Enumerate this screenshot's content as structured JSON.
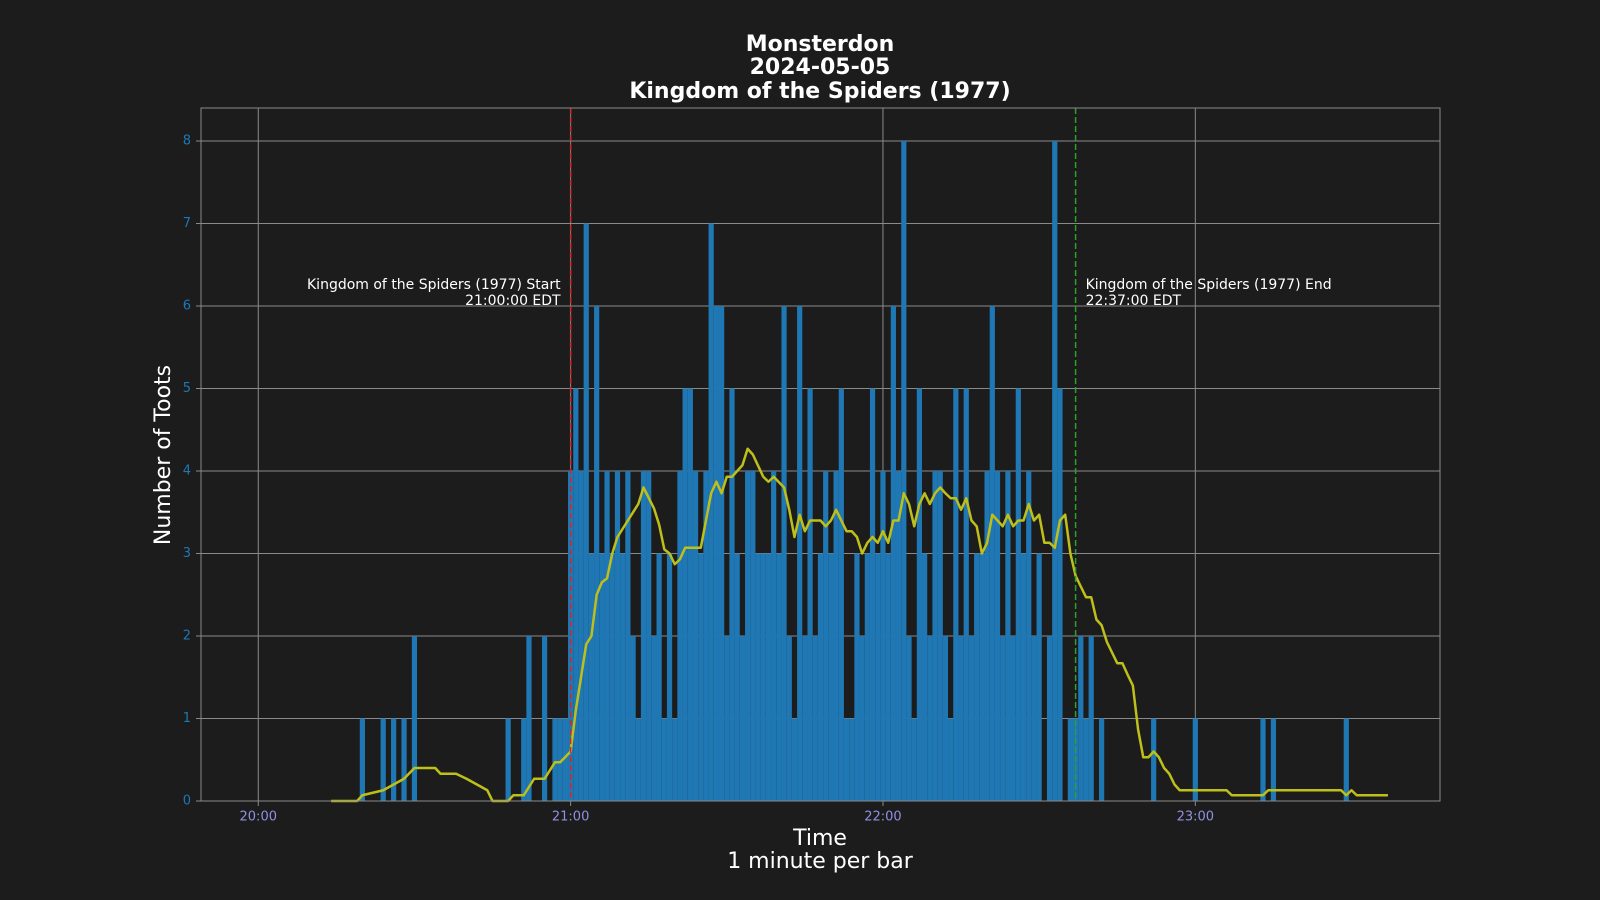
{
  "chart_data": {
    "type": "bar",
    "title": [
      "Monsterdon",
      "2024-05-05",
      "Kingdom of the Spiders (1977)"
    ],
    "xlabel": [
      "Time",
      "1 minute per bar"
    ],
    "ylabel": "Number of Toots",
    "xlim": [
      "19:49",
      "23:47"
    ],
    "xticks": [
      "20:00",
      "21:00",
      "22:00",
      "23:00"
    ],
    "ylim": [
      0,
      8.4
    ],
    "yticks": [
      0,
      1,
      2,
      3,
      4,
      5,
      6,
      7,
      8
    ],
    "grid": true,
    "series": [
      {
        "type": "bar",
        "color": "#1f77b4",
        "x": [
          "20:20",
          "20:24",
          "20:26",
          "20:28",
          "20:30",
          "20:48",
          "20:51",
          "20:52",
          "20:55",
          "20:57",
          "20:58",
          "20:59",
          "21:00",
          "21:01",
          "21:02",
          "21:03",
          "21:04",
          "21:05",
          "21:06",
          "21:07",
          "21:08",
          "21:09",
          "21:10",
          "21:11",
          "21:12",
          "21:13",
          "21:14",
          "21:15",
          "21:16",
          "21:17",
          "21:18",
          "21:19",
          "21:20",
          "21:21",
          "21:22",
          "21:23",
          "21:24",
          "21:25",
          "21:26",
          "21:27",
          "21:28",
          "21:29",
          "21:30",
          "21:31",
          "21:32",
          "21:33",
          "21:34",
          "21:35",
          "21:36",
          "21:37",
          "21:38",
          "21:39",
          "21:40",
          "21:41",
          "21:42",
          "21:43",
          "21:44",
          "21:45",
          "21:46",
          "21:47",
          "21:48",
          "21:49",
          "21:50",
          "21:51",
          "21:52",
          "21:53",
          "21:54",
          "21:55",
          "21:56",
          "21:57",
          "21:58",
          "21:59",
          "22:00",
          "22:01",
          "22:02",
          "22:03",
          "22:04",
          "22:05",
          "22:06",
          "22:07",
          "22:08",
          "22:09",
          "22:10",
          "22:11",
          "22:12",
          "22:13",
          "22:14",
          "22:15",
          "22:16",
          "22:17",
          "22:18",
          "22:19",
          "22:20",
          "22:21",
          "22:22",
          "22:23",
          "22:24",
          "22:25",
          "22:26",
          "22:27",
          "22:28",
          "22:29",
          "22:30",
          "22:32",
          "22:33",
          "22:34",
          "22:36",
          "22:37",
          "22:38",
          "22:39",
          "22:40",
          "22:42",
          "22:52",
          "23:00",
          "23:13",
          "23:15",
          "23:29"
        ],
        "values": [
          1,
          1,
          1,
          1,
          2,
          1,
          1,
          2,
          2,
          1,
          1,
          1,
          4,
          5,
          4,
          7,
          3,
          6,
          3,
          4,
          3,
          4,
          3,
          4,
          2,
          1,
          4,
          4,
          2,
          3,
          1,
          3,
          1,
          4,
          5,
          5,
          4,
          3,
          4,
          7,
          6,
          6,
          2,
          5,
          3,
          2,
          4,
          4,
          3,
          3,
          3,
          4,
          3,
          6,
          2,
          1,
          6,
          2,
          5,
          2,
          3,
          4,
          3,
          4,
          5,
          1,
          1,
          3,
          2,
          3,
          5,
          3,
          4,
          3,
          6,
          4,
          8,
          2,
          1,
          5,
          3,
          2,
          4,
          4,
          2,
          1,
          5,
          2,
          5,
          2,
          3,
          3,
          4,
          6,
          4,
          2,
          4,
          2,
          5,
          3,
          4,
          2,
          3,
          2,
          8,
          5,
          1,
          1,
          2,
          1,
          2,
          1,
          1,
          1,
          1,
          1,
          1
        ]
      },
      {
        "type": "line",
        "color": "#bfbf1a",
        "x": [
          "20:14",
          "20:19",
          "20:20",
          "20:24",
          "20:26",
          "20:28",
          "20:30",
          "20:34",
          "20:35",
          "20:38",
          "20:40",
          "20:42",
          "20:44",
          "20:45",
          "20:48",
          "20:49",
          "20:51",
          "20:53",
          "20:55",
          "20:57",
          "20:58",
          "21:00",
          "21:01",
          "21:02",
          "21:03",
          "21:04",
          "21:05",
          "21:06",
          "21:07",
          "21:08",
          "21:09",
          "21:10",
          "21:11",
          "21:13",
          "21:14",
          "21:16",
          "21:17",
          "21:18",
          "21:19",
          "21:20",
          "21:21",
          "21:22",
          "21:25",
          "21:26",
          "21:27",
          "21:28",
          "21:29",
          "21:30",
          "21:31",
          "21:33",
          "21:34",
          "21:35",
          "21:37",
          "21:38",
          "21:39",
          "21:41",
          "21:42",
          "21:43",
          "21:44",
          "21:45",
          "21:46",
          "21:48",
          "21:49",
          "21:50",
          "21:51",
          "21:52",
          "21:53",
          "21:54",
          "21:55",
          "21:56",
          "21:57",
          "21:58",
          "21:59",
          "22:00",
          "22:01",
          "22:02",
          "22:03",
          "22:04",
          "22:05",
          "22:06",
          "22:07",
          "22:08",
          "22:09",
          "22:10",
          "22:11",
          "22:12",
          "22:13",
          "22:14",
          "22:15",
          "22:16",
          "22:17",
          "22:18",
          "22:19",
          "22:20",
          "22:21",
          "22:22",
          "22:23",
          "22:24",
          "22:25",
          "22:26",
          "22:27",
          "22:28",
          "22:29",
          "22:30",
          "22:31",
          "22:32",
          "22:33",
          "22:34",
          "22:35",
          "22:36",
          "22:37",
          "22:38",
          "22:39",
          "22:40",
          "22:41",
          "22:42",
          "22:43",
          "22:44",
          "22:45",
          "22:46",
          "22:47",
          "22:48",
          "22:49",
          "22:50",
          "22:51",
          "22:52",
          "22:53",
          "22:54",
          "22:55",
          "22:56",
          "22:57",
          "23:06",
          "23:07",
          "23:13",
          "23:14",
          "23:28",
          "23:29",
          "23:30",
          "23:31",
          "23:37"
        ],
        "values": [
          0,
          0,
          0.07,
          0.13,
          0.2,
          0.27,
          0.4,
          0.4,
          0.33,
          0.33,
          0.27,
          0.2,
          0.13,
          0,
          0,
          0.07,
          0.07,
          0.27,
          0.27,
          0.47,
          0.47,
          0.6,
          1.1,
          1.5,
          1.9,
          2.0,
          2.5,
          2.65,
          2.7,
          3.0,
          3.2,
          3.3,
          3.4,
          3.6,
          3.8,
          3.55,
          3.35,
          3.05,
          3.0,
          2.87,
          2.93,
          3.07,
          3.07,
          3.4,
          3.73,
          3.87,
          3.73,
          3.93,
          3.93,
          4.07,
          4.27,
          4.2,
          3.93,
          3.87,
          3.93,
          3.8,
          3.53,
          3.2,
          3.47,
          3.27,
          3.4,
          3.4,
          3.33,
          3.4,
          3.53,
          3.4,
          3.27,
          3.27,
          3.2,
          3.0,
          3.13,
          3.2,
          3.13,
          3.27,
          3.13,
          3.4,
          3.4,
          3.73,
          3.6,
          3.33,
          3.6,
          3.73,
          3.6,
          3.73,
          3.8,
          3.73,
          3.67,
          3.67,
          3.53,
          3.67,
          3.4,
          3.33,
          3.0,
          3.13,
          3.47,
          3.4,
          3.33,
          3.47,
          3.33,
          3.4,
          3.4,
          3.6,
          3.4,
          3.47,
          3.13,
          3.13,
          3.07,
          3.4,
          3.47,
          3.0,
          2.73,
          2.6,
          2.47,
          2.47,
          2.2,
          2.13,
          1.93,
          1.8,
          1.67,
          1.67,
          1.53,
          1.4,
          0.87,
          0.53,
          0.53,
          0.6,
          0.53,
          0.4,
          0.33,
          0.2,
          0.13,
          0.13,
          0.07,
          0.07,
          0.13,
          0.13,
          0.07,
          0.13,
          0.07,
          0.07
        ]
      }
    ],
    "annotations": [
      {
        "x": "21:00",
        "color": "#d62728",
        "lines": [
          "Kingdom of the Spiders (1977) Start",
          "21:00:00 EDT"
        ]
      },
      {
        "x": "22:37",
        "color": "#2ca02c",
        "lines": [
          "Kingdom of the Spiders (1977) End",
          "22:37:00 EDT"
        ]
      }
    ]
  }
}
